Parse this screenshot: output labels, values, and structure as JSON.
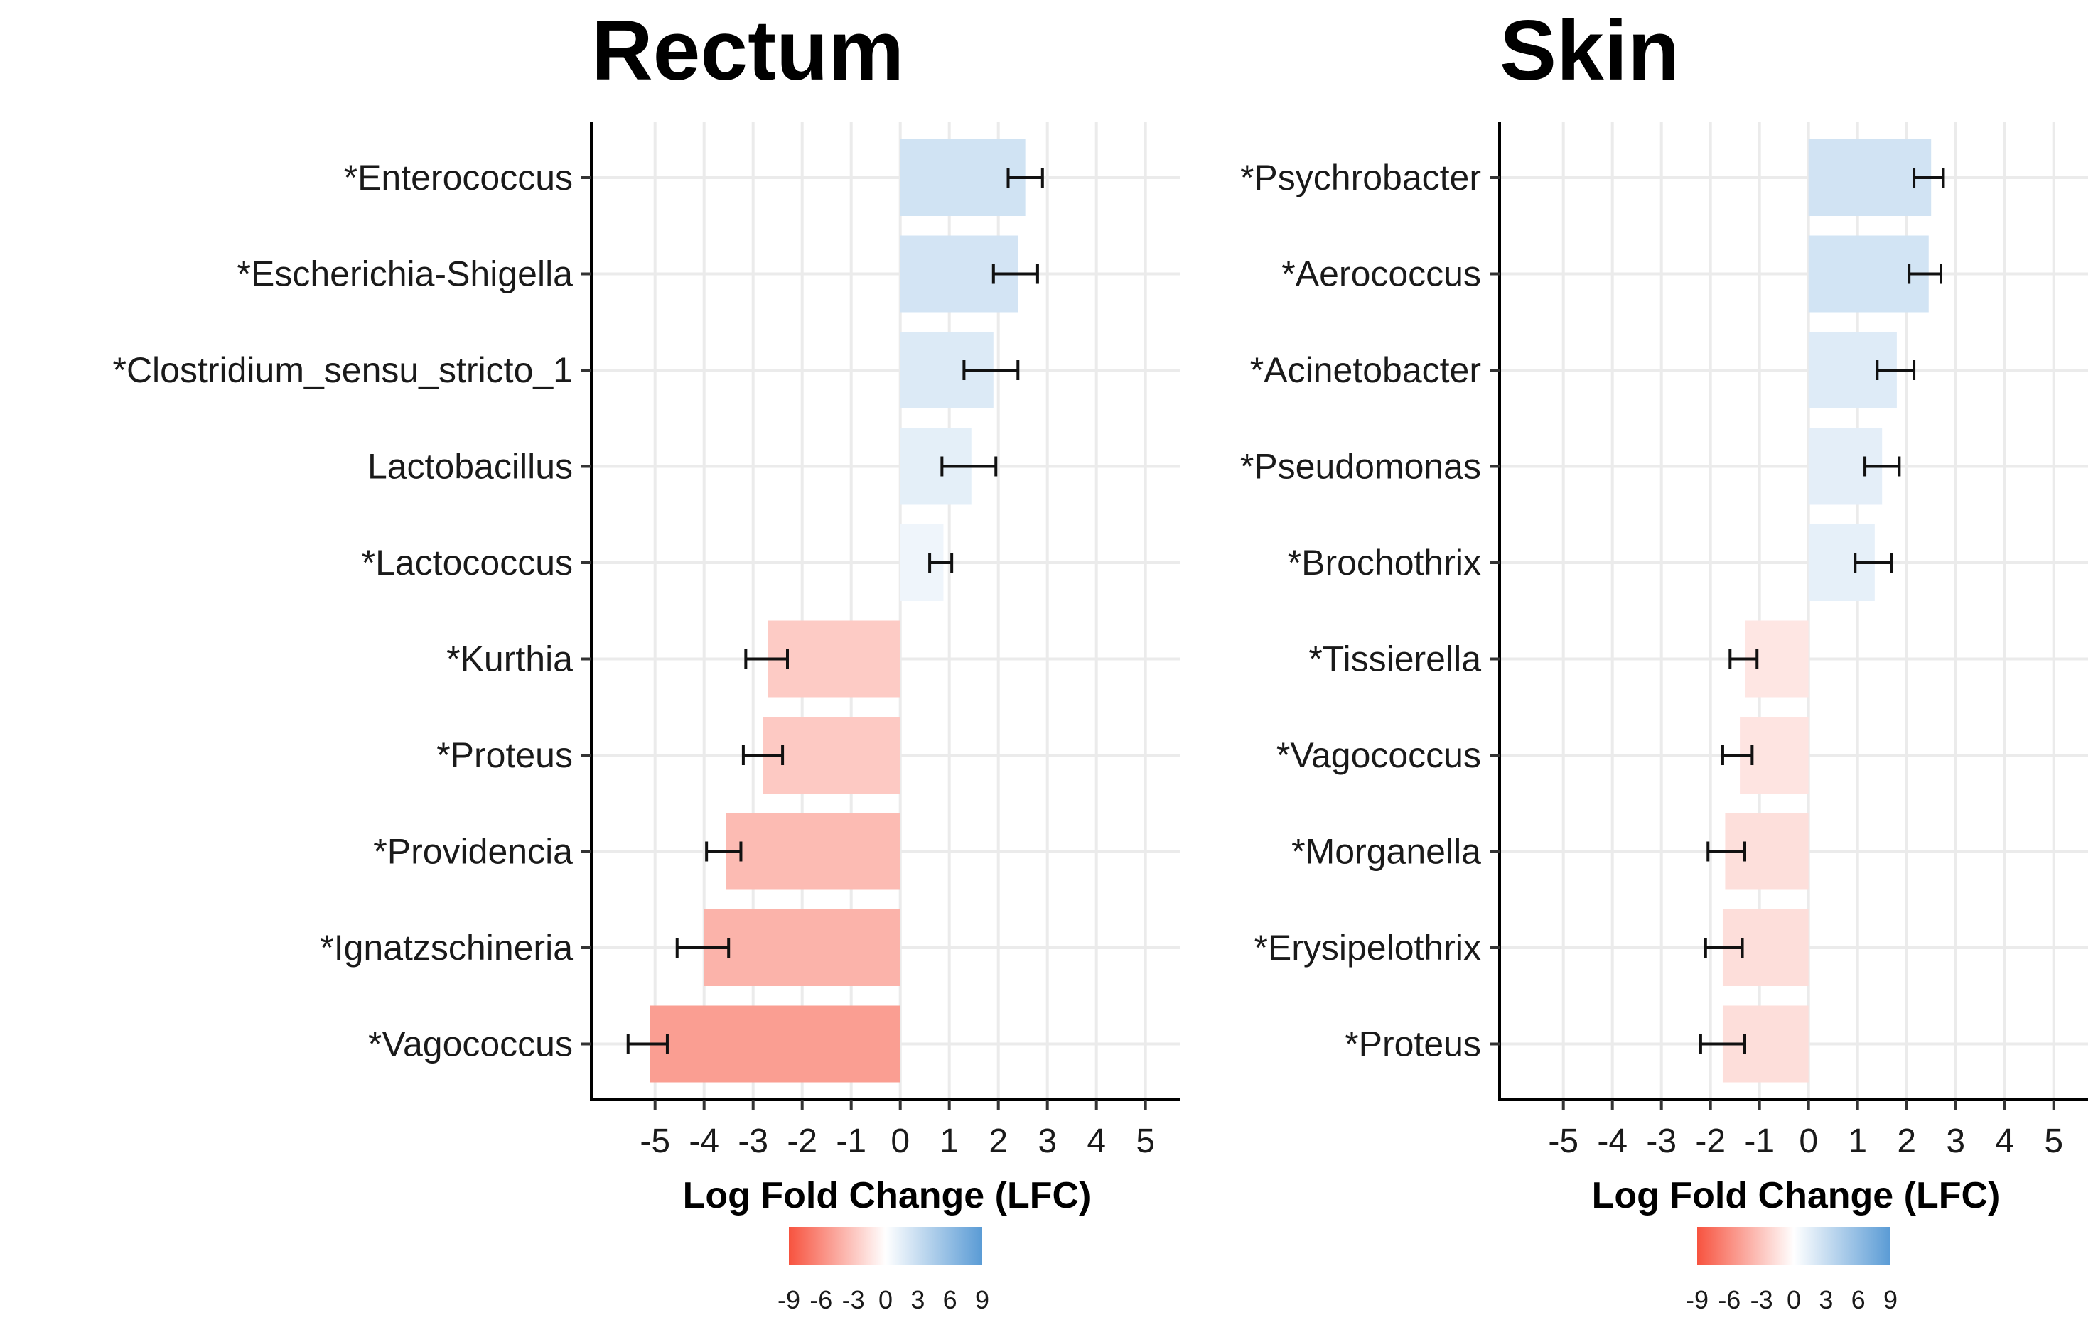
{
  "chart_data": [
    {
      "type": "bar",
      "orientation": "horizontal",
      "title": "Rectum",
      "xlabel": "Log Fold Change (LFC)",
      "ylabel": "",
      "xlim": [
        -6.3,
        5.7
      ],
      "xticks": [
        "-5",
        "-4",
        "-3",
        "-2",
        "-1",
        "0",
        "1",
        "2",
        "3",
        "4",
        "5"
      ],
      "grid": true,
      "categories": [
        "*Enterococcus",
        "*Escherichia-Shigella",
        "*Clostridium_sensu_stricto_1",
        "Lactobacillus",
        "*Lactococcus",
        "*Kurthia",
        "*Proteus",
        "*Providencia",
        "*Ignatzschineria",
        "*Vagococcus"
      ],
      "values": [
        2.55,
        2.4,
        1.9,
        1.45,
        0.88,
        -2.7,
        -2.8,
        -3.55,
        -4.0,
        -5.1
      ],
      "error_low": [
        2.2,
        1.9,
        1.3,
        0.85,
        0.6,
        -3.15,
        -3.2,
        -3.95,
        -4.55,
        -5.55
      ],
      "error_high": [
        2.9,
        2.8,
        2.4,
        1.95,
        1.05,
        -2.3,
        -2.4,
        -3.25,
        -3.5,
        -4.75
      ],
      "legend": {
        "position": "bottom",
        "type": "colorbar",
        "ticks": [
          "-9",
          "-6",
          "-3",
          "0",
          "3",
          "6",
          "9"
        ],
        "range": [
          -9,
          9
        ],
        "low_color": "#f7533f",
        "mid_color": "#ffffff",
        "high_color": "#5a9bd5"
      }
    },
    {
      "type": "bar",
      "orientation": "horizontal",
      "title": "Skin",
      "xlabel": "Log Fold Change (LFC)",
      "ylabel": "",
      "xlim": [
        -6.3,
        5.7
      ],
      "xticks": [
        "-5",
        "-4",
        "-3",
        "-2",
        "-1",
        "0",
        "1",
        "2",
        "3",
        "4",
        "5"
      ],
      "grid": true,
      "categories": [
        "*Psychrobacter",
        "*Aerococcus",
        "*Acinetobacter",
        "*Pseudomonas",
        "*Brochothrix",
        "*Tissierella",
        "*Vagococcus",
        "*Morganella",
        "*Erysipelothrix",
        "*Proteus"
      ],
      "values": [
        2.5,
        2.45,
        1.8,
        1.5,
        1.35,
        -1.3,
        -1.4,
        -1.7,
        -1.75,
        -1.75
      ],
      "error_low": [
        2.15,
        2.05,
        1.4,
        1.15,
        0.95,
        -1.6,
        -1.75,
        -2.05,
        -2.1,
        -2.2
      ],
      "error_high": [
        2.75,
        2.7,
        2.15,
        1.85,
        1.7,
        -1.05,
        -1.15,
        -1.3,
        -1.35,
        -1.3
      ],
      "legend": {
        "position": "bottom",
        "type": "colorbar",
        "ticks": [
          "-9",
          "-6",
          "-3",
          "0",
          "3",
          "6",
          "9"
        ],
        "range": [
          -9,
          9
        ],
        "low_color": "#f7533f",
        "mid_color": "#ffffff",
        "high_color": "#5a9bd5"
      }
    }
  ]
}
